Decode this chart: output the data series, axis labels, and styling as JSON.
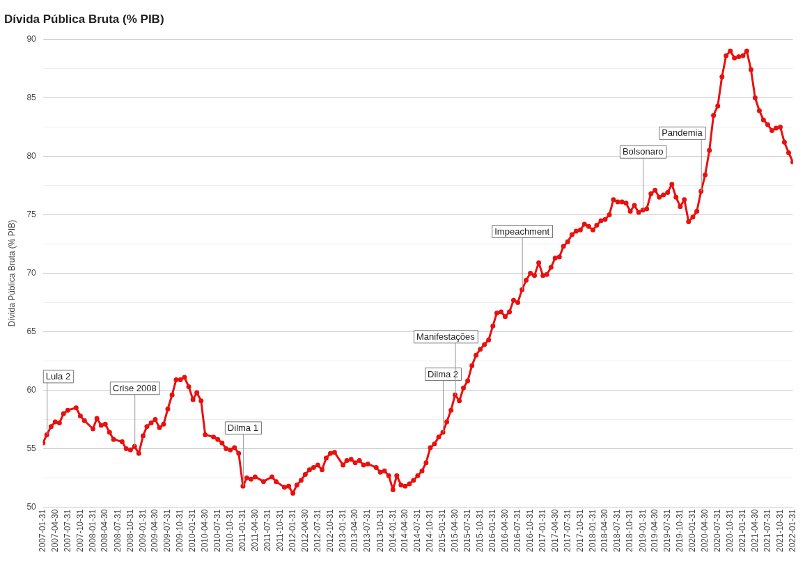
{
  "chart_data": {
    "type": "line",
    "title": "Dívida Pública Bruta (% PIB)",
    "ylabel": "Dívida Pública Bruta (% PIB)",
    "xlim": [
      "2007-01-31",
      "2022-01-31"
    ],
    "xticks": [
      "2007-01-31",
      "2007-04-30",
      "2007-07-31",
      "2007-10-31",
      "2008-01-31",
      "2008-04-30",
      "2008-07-31",
      "2008-10-31",
      "2009-01-31",
      "2009-04-30",
      "2009-07-31",
      "2009-10-31",
      "2010-01-31",
      "2010-04-30",
      "2010-07-31",
      "2010-10-31",
      "2011-01-31",
      "2011-04-30",
      "2011-07-31",
      "2011-10-31",
      "2012-01-31",
      "2012-04-30",
      "2012-07-31",
      "2012-10-31",
      "2013-01-31",
      "2013-04-30",
      "2013-07-31",
      "2013-10-31",
      "2014-01-31",
      "2014-04-30",
      "2014-07-31",
      "2014-10-31",
      "2015-01-31",
      "2015-04-30",
      "2015-07-31",
      "2015-10-31",
      "2016-01-31",
      "2016-04-30",
      "2016-07-31",
      "2016-10-31",
      "2017-01-31",
      "2017-04-30",
      "2017-07-31",
      "2017-10-31",
      "2018-01-31",
      "2018-04-30",
      "2018-07-31",
      "2018-10-31",
      "2019-01-31",
      "2019-04-30",
      "2019-07-31",
      "2019-10-31",
      "2020-01-31",
      "2020-04-30",
      "2020-07-31",
      "2020-10-31",
      "2021-01-31",
      "2021-04-30",
      "2021-07-31",
      "2021-10-31",
      "2022-01-31"
    ],
    "ylim": [
      50,
      90
    ],
    "yticks": [
      50,
      {
        "value": 52.5,
        "label": null
      },
      55,
      {
        "value": 57.5,
        "label": null
      },
      60,
      {
        "value": 62.5,
        "label": null
      },
      65,
      {
        "value": 67.5,
        "label": null
      },
      70,
      {
        "value": 72.5,
        "label": null
      },
      75,
      {
        "value": 77.5,
        "label": null
      },
      80,
      {
        "value": 82.5,
        "label": null
      },
      85,
      {
        "value": 87.5,
        "label": null
      },
      90
    ],
    "grid": "y",
    "legend": false,
    "marker": "circle",
    "line_style": "solid",
    "series": [
      {
        "color": "#e8110f",
        "x": [
          "2007-01-31",
          "2007-02-28",
          "2007-03-31",
          "2007-04-30",
          "2007-05-31",
          "2007-06-30",
          "2007-07-31",
          "2007-09-30",
          "2007-10-31",
          "2007-11-30",
          "2008-01-31",
          "2008-02-29",
          "2008-03-31",
          "2008-04-30",
          "2008-05-31",
          "2008-06-30",
          "2008-08-31",
          "2008-09-30",
          "2008-10-31",
          "2008-11-30",
          "2008-12-31",
          "2009-01-31",
          "2009-02-28",
          "2009-03-31",
          "2009-04-30",
          "2009-05-31",
          "2009-06-30",
          "2009-07-31",
          "2009-08-31",
          "2009-09-30",
          "2009-10-31",
          "2009-11-30",
          "2009-12-31",
          "2010-01-31",
          "2010-02-28",
          "2010-03-31",
          "2010-04-30",
          "2010-06-30",
          "2010-07-31",
          "2010-08-31",
          "2010-09-30",
          "2010-10-31",
          "2010-11-30",
          "2010-12-31",
          "2011-01-31",
          "2011-02-28",
          "2011-03-31",
          "2011-04-30",
          "2011-06-30",
          "2011-08-31",
          "2011-09-30",
          "2011-11-30",
          "2011-12-31",
          "2012-01-31",
          "2012-02-29",
          "2012-03-31",
          "2012-04-30",
          "2012-05-31",
          "2012-06-30",
          "2012-07-31",
          "2012-08-31",
          "2012-09-30",
          "2012-10-31",
          "2012-11-30",
          "2013-01-31",
          "2013-02-28",
          "2013-03-31",
          "2013-04-30",
          "2013-05-31",
          "2013-06-30",
          "2013-07-31",
          "2013-09-30",
          "2013-10-31",
          "2013-11-30",
          "2013-12-31",
          "2014-01-31",
          "2014-02-28",
          "2014-03-31",
          "2014-04-30",
          "2014-05-31",
          "2014-06-30",
          "2014-07-31",
          "2014-08-31",
          "2014-09-30",
          "2014-10-31",
          "2014-11-30",
          "2014-12-31",
          "2015-01-31",
          "2015-02-28",
          "2015-03-31",
          "2015-04-30",
          "2015-05-31",
          "2015-06-30",
          "2015-07-31",
          "2015-08-31",
          "2015-09-30",
          "2015-10-31",
          "2015-11-30",
          "2015-12-31",
          "2016-01-31",
          "2016-02-29",
          "2016-03-31",
          "2016-04-30",
          "2016-05-31",
          "2016-06-30",
          "2016-07-31",
          "2016-08-31",
          "2016-09-30",
          "2016-10-31",
          "2016-11-30",
          "2016-12-31",
          "2017-01-31",
          "2017-02-28",
          "2017-03-31",
          "2017-04-30",
          "2017-05-31",
          "2017-06-30",
          "2017-07-31",
          "2017-08-31",
          "2017-09-30",
          "2017-10-31",
          "2017-11-30",
          "2017-12-31",
          "2018-01-31",
          "2018-02-28",
          "2018-03-31",
          "2018-04-30",
          "2018-05-31",
          "2018-06-30",
          "2018-07-31",
          "2018-08-31",
          "2018-09-30",
          "2018-10-31",
          "2018-11-30",
          "2018-12-31",
          "2019-01-31",
          "2019-02-28",
          "2019-03-31",
          "2019-04-30",
          "2019-05-31",
          "2019-06-30",
          "2019-07-31",
          "2019-08-31",
          "2019-09-30",
          "2019-10-31",
          "2019-11-30",
          "2019-12-31",
          "2020-01-31",
          "2020-02-29",
          "2020-03-31",
          "2020-04-30",
          "2020-05-31",
          "2020-06-30",
          "2020-07-31",
          "2020-08-31",
          "2020-09-30",
          "2020-10-31",
          "2020-11-30",
          "2020-12-31",
          "2021-01-31",
          "2021-02-28",
          "2021-03-31",
          "2021-04-30",
          "2021-05-31",
          "2021-06-30",
          "2021-07-31",
          "2021-08-31",
          "2021-09-30",
          "2021-10-31",
          "2021-11-30",
          "2021-12-31",
          "2022-01-31"
        ],
        "values": [
          55.5,
          56.2,
          56.9,
          57.3,
          57.2,
          58.0,
          58.3,
          58.5,
          57.8,
          57.4,
          56.7,
          57.6,
          57.0,
          57.1,
          56.4,
          55.8,
          55.6,
          55.0,
          54.9,
          55.2,
          54.6,
          56.1,
          56.9,
          57.2,
          57.5,
          56.8,
          57.1,
          58.4,
          59.6,
          60.9,
          60.9,
          61.1,
          60.3,
          59.2,
          59.8,
          59.1,
          56.2,
          56.0,
          55.8,
          55.5,
          55.0,
          54.9,
          55.1,
          54.6,
          51.8,
          52.5,
          52.4,
          52.6,
          52.2,
          52.6,
          52.2,
          51.7,
          51.8,
          51.2,
          51.9,
          52.3,
          52.8,
          53.2,
          53.4,
          53.6,
          53.2,
          54.2,
          54.6,
          54.7,
          53.6,
          54.0,
          54.1,
          53.8,
          54.0,
          53.6,
          53.7,
          53.4,
          53.0,
          53.1,
          52.7,
          51.5,
          52.7,
          51.9,
          51.8,
          52.0,
          52.3,
          52.7,
          53.1,
          53.8,
          55.1,
          55.4,
          56.0,
          56.4,
          57.3,
          58.3,
          59.6,
          59.1,
          60.2,
          60.8,
          62.1,
          63.0,
          63.5,
          63.9,
          64.3,
          65.5,
          66.6,
          66.7,
          66.3,
          66.7,
          67.7,
          67.5,
          68.6,
          69.4,
          70.0,
          69.8,
          70.9,
          69.8,
          69.9,
          70.5,
          71.3,
          71.4,
          72.3,
          72.7,
          73.3,
          73.6,
          73.7,
          74.2,
          74.0,
          73.7,
          74.1,
          74.5,
          74.6,
          75.0,
          76.3,
          76.1,
          76.1,
          76.0,
          75.3,
          75.8,
          75.2,
          75.4,
          75.5,
          76.8,
          77.1,
          76.5,
          76.7,
          76.9,
          77.6,
          76.5,
          75.7,
          76.3,
          74.4,
          74.8,
          75.3,
          77.0,
          78.4,
          80.5,
          83.5,
          84.3,
          86.8,
          88.6,
          89.0,
          88.4,
          88.5,
          88.6,
          89.0,
          87.4,
          85.0,
          83.9,
          83.1,
          82.7,
          82.2,
          82.4,
          82.5,
          81.2,
          80.3,
          79.5
        ]
      }
    ],
    "annotations": [
      {
        "text": "Lula 2",
        "x": "2007-02-28",
        "y": 56.2
      },
      {
        "text": "Crise 2008",
        "x": "2008-11-30",
        "y": 55.2
      },
      {
        "text": "Dilma 1",
        "x": "2011-01-31",
        "y": 51.8
      },
      {
        "text": "Dilma 2",
        "x": "2015-01-31",
        "y": 56.4
      },
      {
        "text": "Manifestações",
        "x": "2015-04-30",
        "y": 59.6
      },
      {
        "text": "Impeachment",
        "x": "2016-08-31",
        "y": 68.6
      },
      {
        "text": "Bolsonaro",
        "x": "2019-01-31",
        "y": 75.4
      },
      {
        "text": "Pandemia",
        "x": "2020-03-31",
        "y": 77.0
      }
    ]
  }
}
